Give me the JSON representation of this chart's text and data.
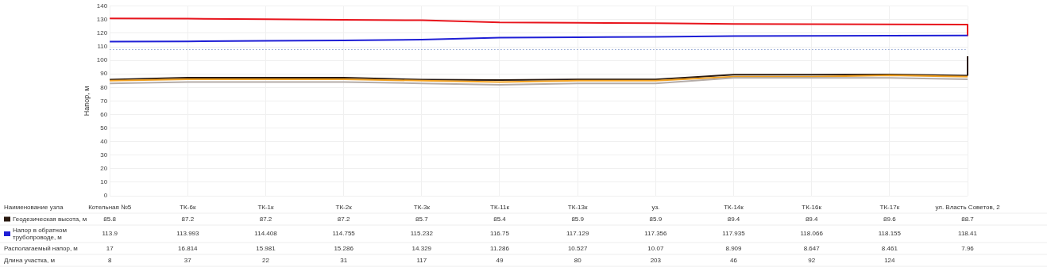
{
  "chart_data": {
    "type": "line",
    "ylabel": "Напор, м",
    "xlabel": "Наименование узла",
    "categories": [
      "Котельная №5",
      "ТК-6к",
      "ТК-1к",
      "ТК-2к",
      "ТК-3к",
      "ТК-11к",
      "ТК-13к",
      "уз.",
      "ТК-14к",
      "ТК-16к",
      "ТК-17к",
      "ул. Власть Советов, 2"
    ],
    "series": [
      {
        "color": "#b4aca8",
        "values": [
          83,
          84,
          84,
          84,
          83,
          82,
          83,
          83,
          87,
          87,
          87,
          86
        ]
      },
      {
        "color": "#f0a020",
        "values": [
          85,
          86,
          86,
          86,
          85,
          84,
          85,
          85,
          88,
          88,
          89,
          88
        ]
      },
      {
        "name": "Геодезическая высота, м",
        "color": "#2a1a10",
        "values": [
          85.8,
          87.2,
          87.2,
          87.2,
          85.7,
          85.4,
          85.9,
          85.9,
          89.4,
          89.4,
          89.6,
          88.7
        ],
        "value_labels": [
          "85.8",
          "87.2",
          "87.2",
          "87.2",
          "85.7",
          "85.4",
          "85.9",
          "85.9",
          "89.4",
          "89.4",
          "89.6",
          "88.7"
        ]
      },
      {
        "name": "Напор в обратном трубопроводе, м",
        "color": "#1f1fd6",
        "values": [
          113.9,
          113.993,
          114.408,
          114.755,
          115.232,
          116.75,
          117.129,
          117.356,
          117.935,
          118.066,
          118.155,
          118.41
        ],
        "value_labels": [
          "113.9",
          "113.993",
          "114.408",
          "114.755",
          "115.232",
          "116.75",
          "117.129",
          "117.356",
          "117.935",
          "118.066",
          "118.155",
          "118.41"
        ]
      },
      {
        "color": "#e8141c",
        "values": [
          130.9,
          130.8,
          130.4,
          130.0,
          129.6,
          128.0,
          127.7,
          127.4,
          126.8,
          126.7,
          126.6,
          126.4
        ]
      },
      {
        "color": "#e8141c",
        "x": [
          "ул. Власть Советов, 2",
          "ул. Власть Советов, 2"
        ],
        "values": [
          126.4,
          118.4
        ]
      },
      {
        "color": "#2a1a10",
        "x": [
          "ул. Власть Советов, 2",
          "ул. Власть Советов, 2"
        ],
        "values": [
          88.7,
          103
        ]
      }
    ],
    "ref_lines": [
      {
        "axis": "y",
        "value": 108,
        "color": "#8aa0d0",
        "line_style": "dotted"
      }
    ],
    "annotations": [
      "Располагаемый напор, м",
      "17",
      "16.814",
      "15.981",
      "15.286",
      "14.329",
      "11.286",
      "10.527",
      "10.07",
      "8.909",
      "8.647",
      "8.461",
      "7.96",
      "Длина участка, м",
      "8",
      "37",
      "22",
      "31",
      "117",
      "49",
      "80",
      "203",
      "46",
      "92",
      "124"
    ],
    "ylim": [
      0,
      140
    ],
    "yticks": [
      0,
      10,
      20,
      30,
      40,
      50,
      60,
      70,
      80,
      90,
      100,
      110,
      120,
      130,
      140
    ],
    "grid": true,
    "legend": "bottom left",
    "marker": "none",
    "line_style": "solid",
    "tick_labels": "y"
  }
}
